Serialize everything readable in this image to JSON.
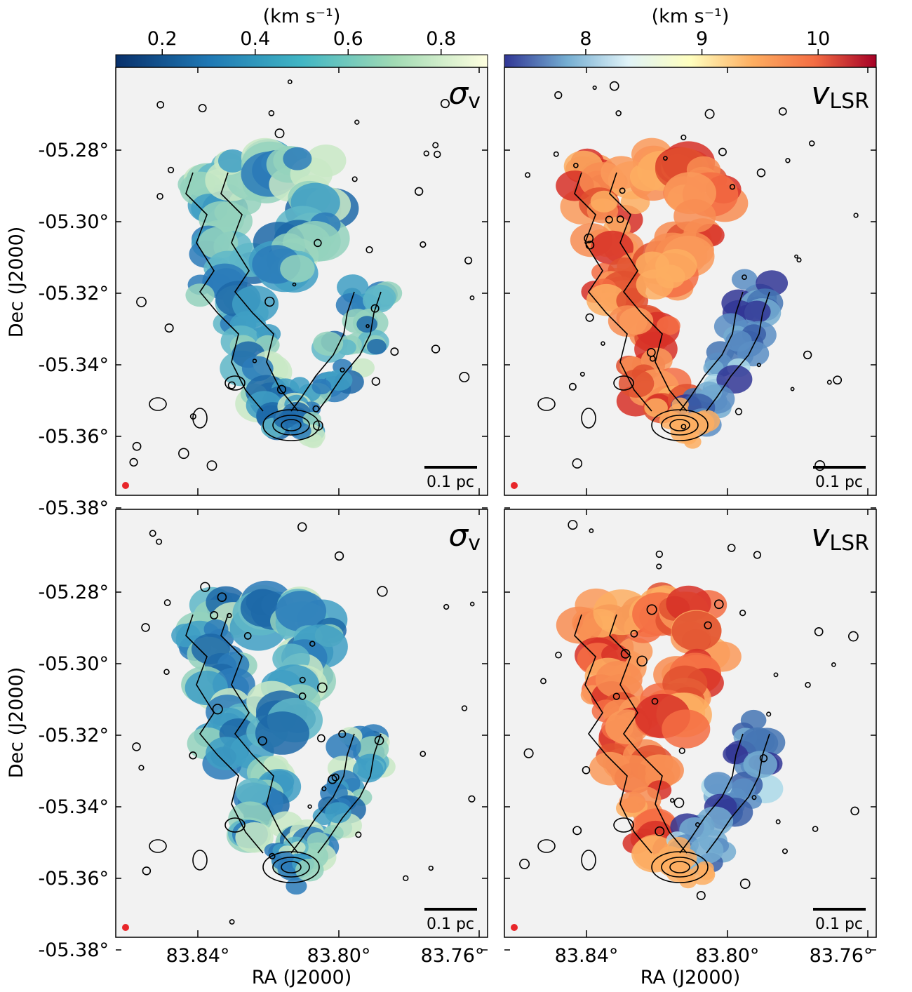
{
  "chart_data": [
    {
      "type": "heatmap",
      "panel": "top-left",
      "label_symbol": "σ",
      "label_sub": "v",
      "colorbar": {
        "label": "(km s⁻¹)",
        "ticks": [
          "0.2",
          "0.4",
          "0.6",
          "0.8"
        ],
        "tick_values": [
          0.2,
          0.4,
          0.6,
          0.8
        ],
        "range": [
          0.1,
          0.9
        ],
        "colormap": "YlGnBu_r",
        "stops": [
          "#08306b",
          "#1f78b4",
          "#41b6c4",
          "#a1dab4",
          "#ffffe0"
        ]
      },
      "ylabel": "Dec (J2000)",
      "yticks": [
        "-05.28°",
        "-05.30°",
        "-05.32°",
        "-05.34°",
        "-05.36°",
        "-05.38°"
      ],
      "scale_bar": "0.1 pc"
    },
    {
      "type": "heatmap",
      "panel": "top-right",
      "label_symbol": "v",
      "label_sub": "LSR",
      "colorbar": {
        "label": "(km s⁻¹)",
        "ticks": [
          "8",
          "9",
          "10"
        ],
        "tick_values": [
          8,
          9,
          10
        ],
        "range": [
          7.3,
          10.5
        ],
        "colormap": "RdYlBu_r",
        "stops": [
          "#313695",
          "#74add1",
          "#e0f3f8",
          "#ffffbf",
          "#fdae61",
          "#f46d43",
          "#a50026"
        ]
      },
      "scale_bar": "0.1 pc"
    },
    {
      "type": "heatmap",
      "panel": "bottom-left",
      "label_symbol": "σ",
      "label_sub": "v",
      "ylabel": "Dec (J2000)",
      "yticks": [
        "-05.28°",
        "-05.30°",
        "-05.32°",
        "-05.34°",
        "-05.36°",
        "-05.38°"
      ],
      "xlabel": "RA (J2000)",
      "xticks": [
        "83.84°",
        "83.80°",
        "83.76°"
      ],
      "scale_bar": "0.1 pc"
    },
    {
      "type": "heatmap",
      "panel": "bottom-right",
      "label_symbol": "v",
      "label_sub": "LSR",
      "xlabel": "RA (J2000)",
      "xticks": [
        "83.84°",
        "83.80°",
        "83.76°"
      ],
      "scale_bar": "0.1 pc"
    }
  ],
  "colors": {
    "panel_bg": "#f2f2f2",
    "beam": "#e8262a",
    "contour": "#000000"
  }
}
